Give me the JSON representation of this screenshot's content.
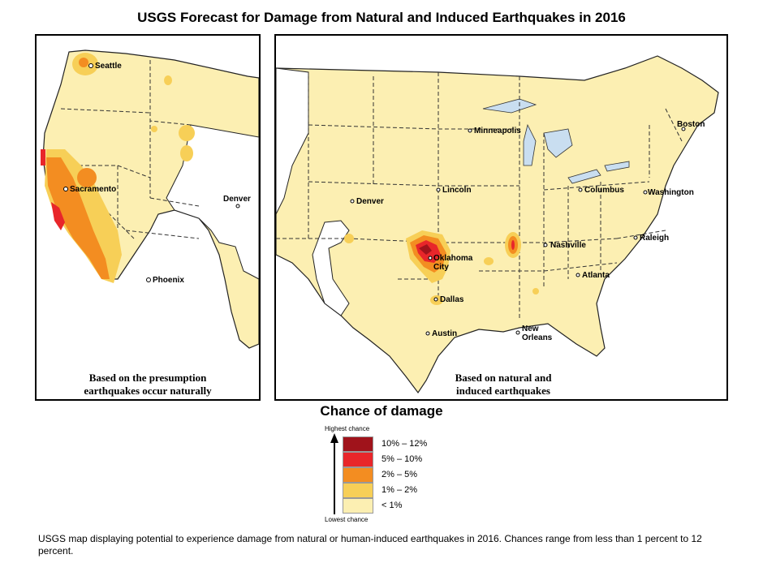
{
  "title": "USGS Forecast for Damage from Natural and Induced Earthquakes in 2016",
  "left_map": {
    "caption_line1": "Based on the presumption",
    "caption_line2": "earthquakes occur naturally",
    "cities": [
      "Seattle",
      "Sacramento",
      "Denver",
      "Phoenix"
    ]
  },
  "right_map": {
    "caption_line1": "Based on natural and",
    "caption_line2": "induced earthquakes",
    "cities": [
      "Minneapolis",
      "Boston",
      "Lincoln",
      "Columbus",
      "Washington",
      "Denver",
      "Nashville",
      "Raleigh",
      "Oklahoma",
      "City",
      "Atlanta",
      "Dallas",
      "Austin",
      "New",
      "Orleans"
    ]
  },
  "legend": {
    "title": "Chance of damage",
    "top_label": "Highest chance",
    "bottom_label": "Lowest chance",
    "classes": [
      {
        "label": "10% – 12%",
        "color": "#a0131b"
      },
      {
        "label": "5% – 10%",
        "color": "#e8262a"
      },
      {
        "label": "2% – 5%",
        "color": "#f38d21"
      },
      {
        "label": "1% – 2%",
        "color": "#f7cf57"
      },
      {
        "label": "< 1%",
        "color": "#fcefb2"
      }
    ]
  },
  "description": "USGS map displaying potential to experience damage from natural or human-induced earthquakes in 2016. Chances range from less than 1 percent to 12 percent."
}
